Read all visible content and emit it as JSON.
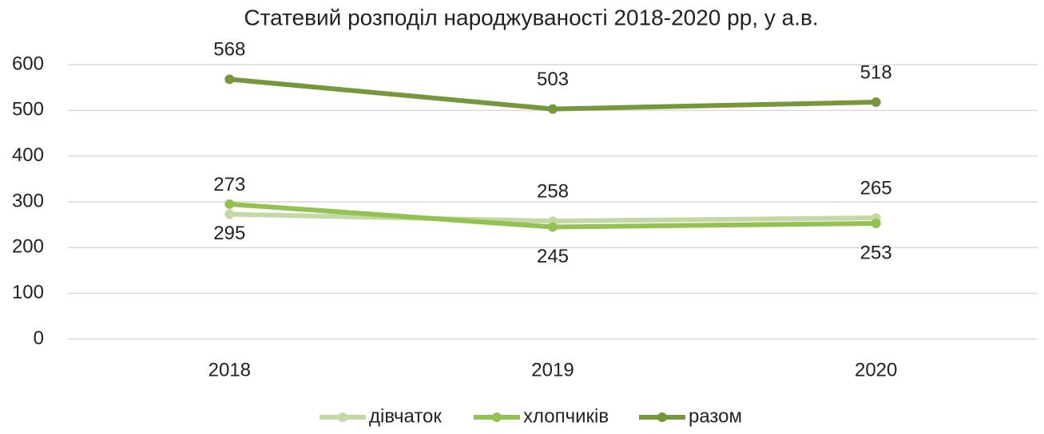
{
  "chart_data": {
    "type": "line",
    "title": "Статевий розподіл народжуваності 2018-2020 рр, у а.в.",
    "categories": [
      "2018",
      "2019",
      "2020"
    ],
    "series": [
      {
        "name": "дівчаток",
        "color": "#c4d8a6",
        "values": [
          273,
          258,
          265
        ],
        "label_pos": "above"
      },
      {
        "name": "хлопчиків",
        "color": "#93c152",
        "values": [
          295,
          245,
          253
        ],
        "label_pos": "below"
      },
      {
        "name": "разом",
        "color": "#77973d",
        "values": [
          568,
          503,
          518
        ],
        "label_pos": "above"
      }
    ],
    "ylim": [
      0,
      600
    ],
    "yticks": [
      0,
      100,
      200,
      300,
      400,
      500,
      600
    ],
    "grid": true,
    "legend": "bottom"
  }
}
